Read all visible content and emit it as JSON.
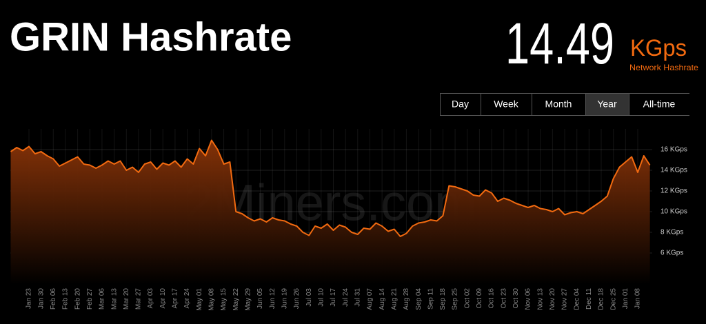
{
  "header": {
    "title": "GRIN Hashrate",
    "value": "14.49",
    "unit": "KGps",
    "caption": "Network Hashrate"
  },
  "buttons": [
    "Day",
    "Week",
    "Month",
    "Year",
    "All-time"
  ],
  "selected": 3,
  "chart_data": {
    "type": "area",
    "watermark": "2Miners.com",
    "color": "#f26a10",
    "grid": true,
    "categories": [
      null,
      null,
      null,
      "Jan 23",
      null,
      "Jan 30",
      null,
      "Feb 06",
      null,
      "Feb 13",
      null,
      "Feb 20",
      null,
      "Feb 27",
      null,
      "Mar 06",
      null,
      "Mar 13",
      null,
      "Mar 20",
      null,
      "Mar 27",
      null,
      "Apr 03",
      null,
      "Apr 10",
      null,
      "Apr 17",
      null,
      "Apr 24",
      null,
      "May 01",
      null,
      "May 08",
      null,
      "May 15",
      null,
      "May 22",
      null,
      "May 29",
      null,
      "Jun 05",
      null,
      "Jun 12",
      null,
      "Jun 19",
      null,
      "Jun 26",
      null,
      "Jul 03",
      null,
      "Jul 10",
      null,
      "Jul 17",
      null,
      "Jul 24",
      null,
      "Jul 31",
      null,
      "Aug 07",
      null,
      "Aug 14",
      null,
      "Aug 21",
      null,
      "Aug 28",
      null,
      "Sep 04",
      null,
      "Sep 11",
      null,
      "Sep 18",
      null,
      "Sep 25",
      null,
      "Oct 02",
      null,
      "Oct 09",
      null,
      "Oct 16",
      null,
      "Oct 23",
      null,
      "Oct 30",
      null,
      "Nov 06",
      null,
      "Nov 13",
      null,
      "Nov 20",
      null,
      "Nov 27",
      null,
      "Dec 04",
      null,
      "Dec 11",
      null,
      "Dec 18",
      null,
      "Dec 25",
      null,
      "Jan 01",
      null,
      "Jan 08",
      null,
      null
    ],
    "values": [
      15.8,
      16.2,
      15.9,
      16.3,
      15.6,
      15.8,
      15.4,
      15.1,
      14.4,
      14.7,
      15.0,
      15.3,
      14.6,
      14.5,
      14.2,
      14.5,
      14.9,
      14.6,
      14.9,
      14.0,
      14.3,
      13.8,
      14.6,
      14.8,
      14.1,
      14.7,
      14.5,
      14.9,
      14.3,
      15.1,
      14.6,
      16.1,
      15.4,
      16.9,
      16.0,
      14.6,
      14.8,
      10.0,
      9.8,
      9.4,
      9.1,
      9.3,
      9.0,
      9.4,
      9.2,
      9.1,
      8.8,
      8.6,
      8.0,
      7.7,
      8.6,
      8.4,
      8.8,
      8.2,
      8.7,
      8.5,
      8.0,
      7.8,
      8.4,
      8.3,
      8.9,
      8.6,
      8.1,
      8.3,
      7.6,
      7.9,
      8.6,
      8.9,
      9.0,
      9.2,
      9.1,
      9.6,
      12.5,
      12.4,
      12.2,
      12.0,
      11.6,
      11.5,
      12.1,
      11.8,
      11.0,
      11.3,
      11.1,
      10.8,
      10.6,
      10.4,
      10.6,
      10.3,
      10.2,
      10.0,
      10.3,
      9.7,
      9.9,
      10.0,
      9.8,
      10.2,
      10.6,
      11.0,
      11.5,
      13.2,
      14.3,
      14.8,
      15.3,
      13.8,
      15.4,
      14.5
    ],
    "ylim": [
      3,
      18
    ],
    "yticks": [
      {
        "value": 6,
        "label": "6 KGps"
      },
      {
        "value": 8,
        "label": "8 KGps"
      },
      {
        "value": 10,
        "label": "10 KGps"
      },
      {
        "value": 12,
        "label": "12 KGps"
      },
      {
        "value": 14,
        "label": "14 KGps"
      },
      {
        "value": 16,
        "label": "16 KGps"
      }
    ]
  }
}
